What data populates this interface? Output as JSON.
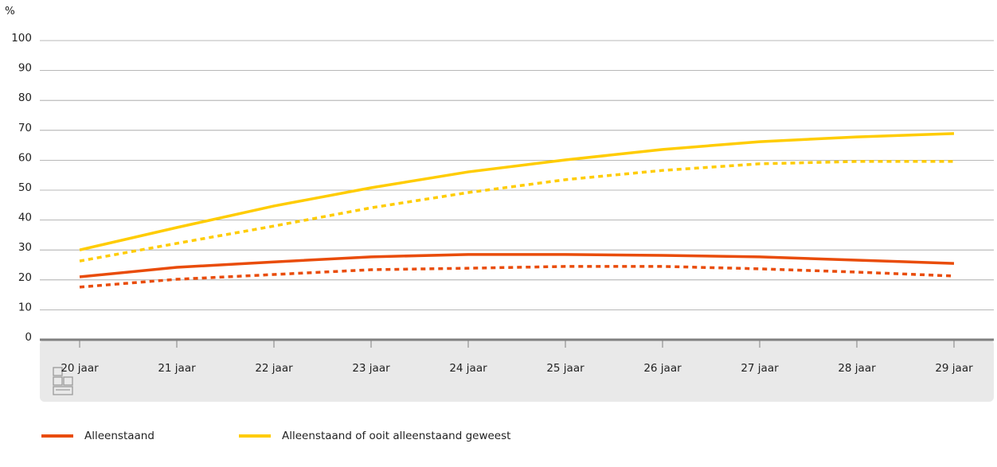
{
  "chart_data": {
    "type": "line",
    "y_label": "%",
    "categories": [
      "20 jaar",
      "21 jaar",
      "22 jaar",
      "23 jaar",
      "24 jaar",
      "25 jaar",
      "26 jaar",
      "27 jaar",
      "28 jaar",
      "29 jaar"
    ],
    "ylim": [
      0,
      100
    ],
    "yticks": [
      0,
      10,
      20,
      30,
      40,
      50,
      60,
      70,
      80,
      90,
      100
    ],
    "grid": true,
    "legend": "bottom",
    "series": [
      {
        "name": "Alleenstaand",
        "color": "#e94c0a",
        "dashed": false,
        "values": [
          21,
          24.2,
          26,
          27.7,
          28.5,
          28.5,
          28.2,
          27.7,
          26.6,
          25.5
        ]
      },
      {
        "name": "Alleenstaand of ooit alleenstaand geweest",
        "color": "#ffcc00",
        "dashed": false,
        "values": [
          30,
          37.5,
          44.7,
          50.8,
          56.1,
          60.1,
          63.6,
          66.2,
          67.8,
          68.9
        ]
      },
      {
        "color": "#e94c0a",
        "dashed": true,
        "values": [
          17.6,
          20.2,
          21.8,
          23.4,
          23.9,
          24.5,
          24.5,
          23.7,
          22.6,
          21.3
        ]
      },
      {
        "color": "#ffcc00",
        "dashed": true,
        "values": [
          26.3,
          32.2,
          38,
          44.1,
          49.2,
          53.5,
          56.6,
          58.8,
          59.6,
          59.6
        ]
      }
    ]
  }
}
